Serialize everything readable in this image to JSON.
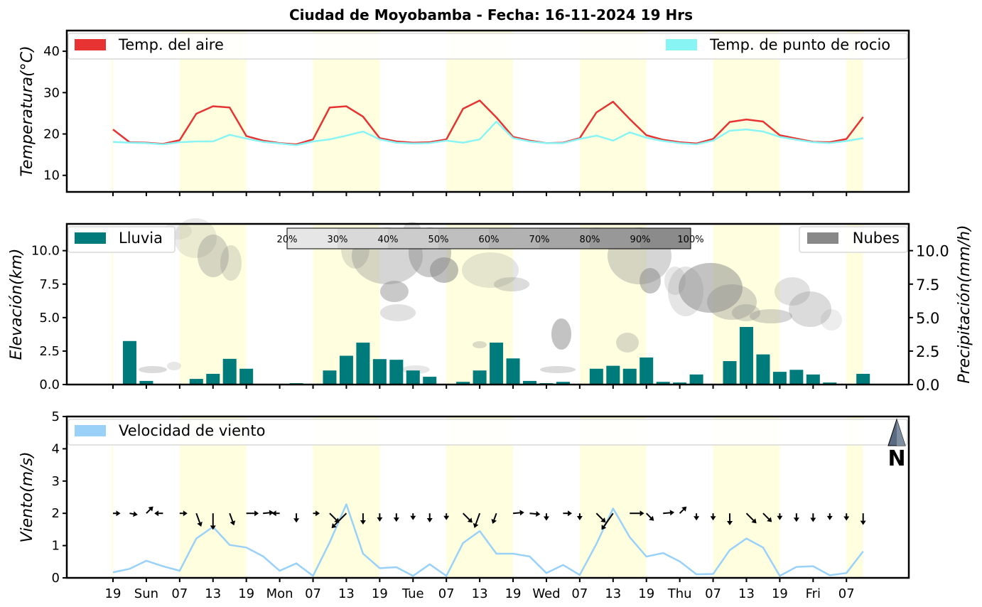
{
  "title": "Ciudad de Moyobamba   -   Fecha: 16-11-2024 19 Hrs",
  "x_tick_labels": [
    "19",
    "Sun",
    "07",
    "13",
    "19",
    "Mon",
    "07",
    "13",
    "19",
    "Tue",
    "07",
    "13",
    "19",
    "Wed",
    "07",
    "13",
    "19",
    "Thu",
    "07",
    "13",
    "19",
    "Fri",
    "07"
  ],
  "colors": {
    "temp_air": "#e83333",
    "dew_point": "#88f4f4",
    "rain": "#007b7b",
    "clouds": "#888888",
    "wind": "#99d1f9",
    "daylight": "#ffffe0"
  },
  "chart_data": [
    {
      "type": "line",
      "ylabel": "Temperatura(°C)",
      "ylim": [
        6,
        45
      ],
      "y_ticks": [
        "10",
        "20",
        "30",
        "40"
      ],
      "legend_placement": "top",
      "x_step_hours": 3,
      "series": [
        {
          "name": "Temp. del aire",
          "values": [
            21.1,
            18.0,
            17.9,
            17.6,
            18.5,
            24.9,
            26.7,
            26.4,
            19.5,
            18.4,
            17.8,
            17.5,
            18.7,
            26.4,
            26.7,
            24.2,
            19.0,
            18.2,
            17.9,
            18.0,
            18.7,
            26.1,
            28.1,
            24.0,
            19.3,
            18.4,
            17.8,
            17.9,
            19.0,
            25.2,
            27.8,
            23.6,
            19.7,
            18.6,
            18.0,
            17.7,
            18.8,
            22.9,
            23.5,
            23.0,
            19.7,
            18.9,
            18.1,
            18.0,
            18.8,
            24.1
          ]
        },
        {
          "name": "Temp. de punto de rocio",
          "values": [
            18.1,
            17.9,
            17.8,
            17.5,
            18.0,
            18.2,
            18.2,
            19.8,
            18.9,
            18.1,
            17.7,
            17.3,
            18.2,
            18.7,
            19.6,
            20.6,
            18.7,
            17.9,
            17.7,
            17.8,
            18.4,
            17.9,
            18.7,
            23.0,
            19.0,
            18.2,
            17.8,
            17.8,
            18.8,
            19.6,
            18.4,
            20.4,
            19.1,
            18.3,
            17.8,
            17.5,
            18.4,
            20.8,
            21.1,
            20.6,
            19.3,
            18.6,
            18.0,
            17.8,
            18.3,
            19.0
          ]
        }
      ]
    },
    {
      "type": "bar",
      "ylabel": "Elevación(km)",
      "y2label": "Precipitación(mm/h)",
      "ylim": [
        0,
        12
      ],
      "y_ticks": [
        "0.0",
        "2.5",
        "5.0",
        "7.5",
        "10.0"
      ],
      "y2_ticks": [
        "0.0",
        "2.5",
        "5.0",
        "7.5",
        "10.0"
      ],
      "series": [
        {
          "name": "Lluvia",
          "values": [
            0,
            3.25,
            0.27,
            0,
            0,
            0.42,
            0.8,
            1.92,
            1.18,
            0,
            0,
            0.1,
            0,
            1.05,
            2.15,
            3.13,
            1.9,
            1.85,
            1.05,
            0.58,
            0,
            0.2,
            1.05,
            3.13,
            1.95,
            0.27,
            0.1,
            0.2,
            0,
            1.18,
            1.4,
            1.18,
            2.02,
            0.2,
            0.15,
            0.75,
            0,
            1.75,
            4.3,
            2.25,
            0.95,
            1.1,
            0.75,
            0.15,
            0,
            0.8
          ]
        },
        {
          "name": "Nubes"
        }
      ],
      "cloud_scale_labels": [
        "20%",
        "30%",
        "40%",
        "50%",
        "60%",
        "70%",
        "80%",
        "90%",
        "100%"
      ]
    },
    {
      "type": "line",
      "ylabel": "Viento(m/s)",
      "ylim": [
        0,
        5
      ],
      "y_ticks": [
        "0",
        "1",
        "2",
        "3",
        "4",
        "5"
      ],
      "series": [
        {
          "name": "Velocidad de viento",
          "values": [
            0.17,
            0.28,
            0.53,
            0.36,
            0.22,
            1.22,
            1.58,
            1.02,
            0.94,
            0.67,
            0.22,
            0.45,
            0.06,
            1.1,
            2.28,
            0.75,
            0.3,
            0.33,
            0.06,
            0.42,
            0.06,
            1.08,
            1.45,
            0.75,
            0.75,
            0.66,
            0.15,
            0.4,
            0.09,
            1.05,
            2.15,
            1.26,
            0.66,
            0.77,
            0.51,
            0.11,
            0.12,
            0.86,
            1.22,
            0.94,
            0.06,
            0.34,
            0.36,
            0.08,
            0.15,
            0.82
          ]
        }
      ],
      "wind_direction_deg": [
        90,
        100,
        45,
        270,
        90,
        160,
        180,
        160,
        90,
        85,
        270,
        180,
        90,
        135,
        225,
        180,
        180,
        180,
        180,
        180,
        180,
        135,
        200,
        200,
        85,
        95,
        180,
        90,
        180,
        135,
        215,
        90,
        135,
        85,
        45,
        180,
        180,
        180,
        135,
        135,
        180,
        180,
        180,
        180,
        180,
        180
      ],
      "north_label": "N"
    }
  ]
}
